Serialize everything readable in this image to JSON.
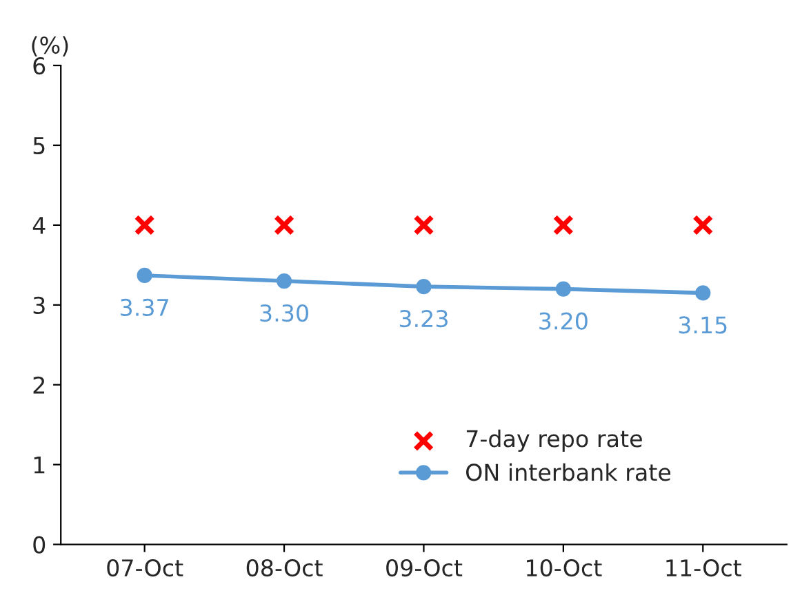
{
  "chart_data": {
    "type": "line",
    "ylabel": "(%)",
    "categories": [
      "07-Oct",
      "08-Oct",
      "09-Oct",
      "10-Oct",
      "11-Oct"
    ],
    "series": [
      {
        "name": "7-day repo rate",
        "type": "scatter",
        "marker": "cross",
        "color": "#ff0000",
        "values": [
          4,
          4,
          4,
          4,
          4
        ]
      },
      {
        "name": "ON interbank rate",
        "marker": "circle",
        "color": "#5b9bd5",
        "values": [
          3.37,
          3.3,
          3.23,
          3.2,
          3.15
        ],
        "value_labels": [
          "3.37",
          "3.30",
          "3.23",
          "3.20",
          "3.15"
        ]
      }
    ],
    "ylim": [
      0,
      6
    ],
    "yticks": [
      0,
      1,
      2,
      3,
      4,
      5,
      6
    ],
    "grid": false,
    "legend": "bottom right"
  }
}
